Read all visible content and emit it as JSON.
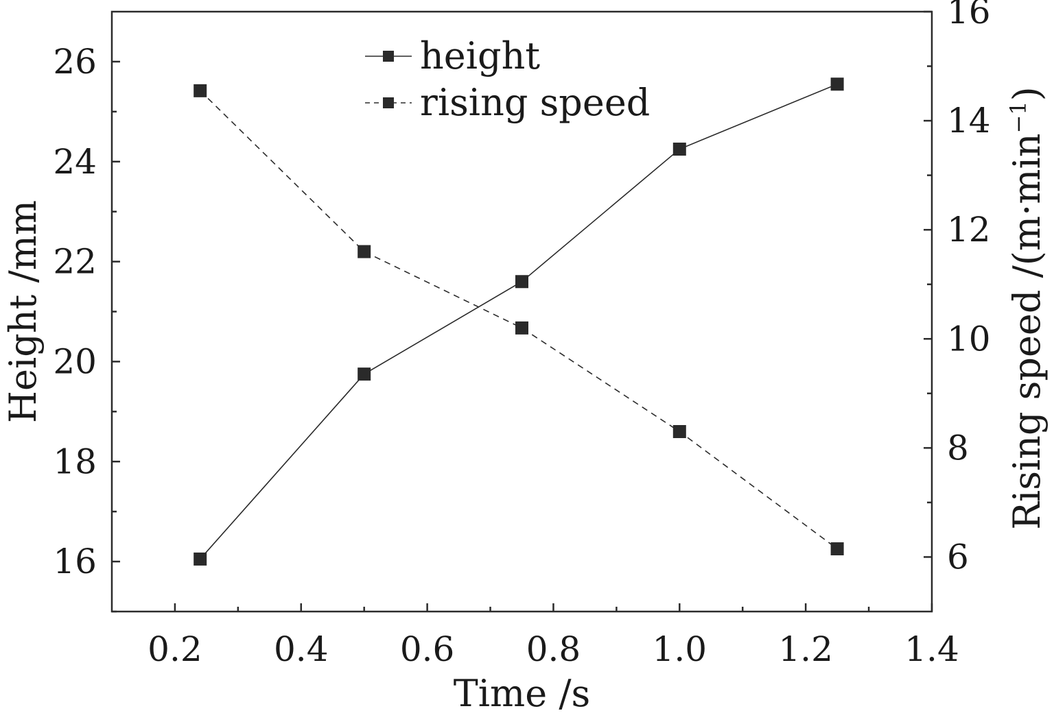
{
  "chart_data": {
    "type": "line",
    "title": "",
    "xlabel": "Time /s",
    "ylabel_left": "Height /mm",
    "ylabel_right": {
      "main": "Rising speed /(m·min",
      "sup": "−1",
      "close": ")"
    },
    "xlim": [
      0.1,
      1.4
    ],
    "ylim_left": [
      15,
      27
    ],
    "ylim_right": [
      5,
      16
    ],
    "x_ticks": [
      "0.2",
      "0.4",
      "0.6",
      "0.8",
      "1.0",
      "1.2",
      "1.4"
    ],
    "y_left_ticks": [
      "16",
      "18",
      "20",
      "22",
      "24",
      "26"
    ],
    "y_right_ticks": [
      "6",
      "8",
      "10",
      "12",
      "14",
      "16"
    ],
    "grid": false,
    "legend_position": "top-center",
    "series": [
      {
        "name": "height",
        "axis": "left",
        "line_style": "solid",
        "marker": "square",
        "color": "#2b2b2b",
        "x": [
          0.24,
          0.5,
          0.75,
          1.0,
          1.25
        ],
        "values": [
          16.05,
          19.75,
          21.6,
          24.25,
          25.55
        ]
      },
      {
        "name": "rising speed",
        "axis": "right",
        "line_style": "dashed",
        "marker": "square",
        "color": "#2b2b2b",
        "x": [
          0.24,
          0.5,
          0.75,
          1.0,
          1.25
        ],
        "values": [
          14.55,
          11.6,
          10.2,
          8.3,
          6.15
        ]
      }
    ]
  }
}
